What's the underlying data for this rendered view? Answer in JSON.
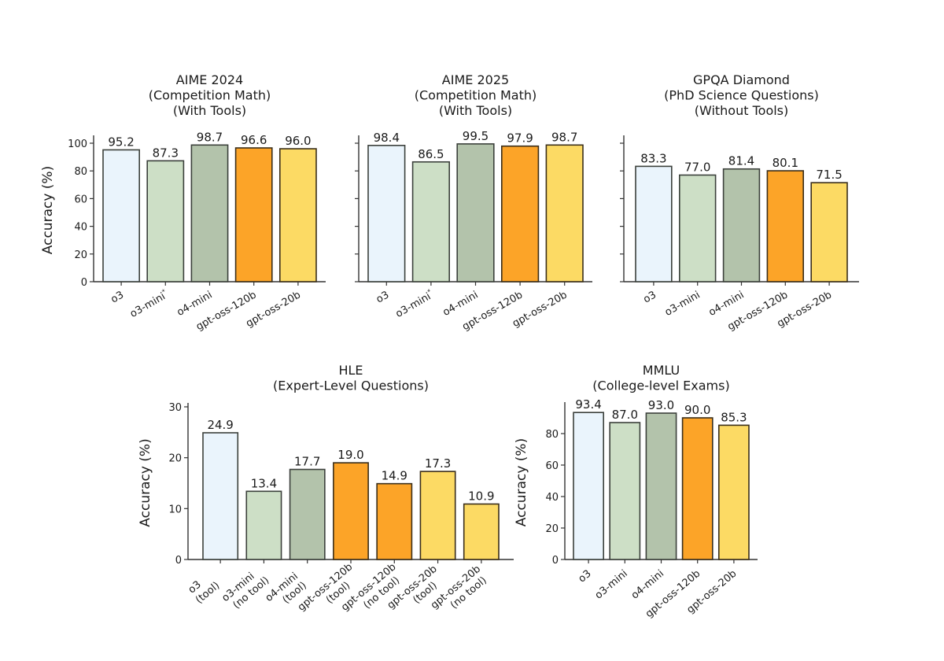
{
  "palette": {
    "o3": {
      "fill": "#EAF4FC",
      "edge": "#3b403b"
    },
    "o3-mini": {
      "fill": "#CDDFC6",
      "edge": "#3b403b"
    },
    "o4-mini": {
      "fill": "#B3C3AB",
      "edge": "#3b403b"
    },
    "gpt-oss-120b": {
      "fill": "#FCA428",
      "edge": "#3a2e1a"
    },
    "gpt-oss-20b": {
      "fill": "#FCDA64",
      "edge": "#3a2e1a"
    }
  },
  "chart_data": [
    {
      "id": "aime2024",
      "type": "bar",
      "title": [
        "AIME 2024",
        "(Competition Math)",
        "(With Tools)"
      ],
      "xlabel": "",
      "ylabel": "Accuracy (%)",
      "ylim": [
        0,
        105
      ],
      "yticks": [
        0,
        20,
        40,
        60,
        80,
        100
      ],
      "show_ytick_labels": true,
      "categories": [
        "o3",
        "o3-mini*",
        "o4-mini",
        "gpt-oss-120b",
        "gpt-oss-20b"
      ],
      "color_keys": [
        "o3",
        "o3-mini",
        "o4-mini",
        "gpt-oss-120b",
        "gpt-oss-20b"
      ],
      "values": [
        95.2,
        87.3,
        98.7,
        96.6,
        96.0
      ],
      "value_labels": [
        "95.2",
        "87.3",
        "98.7",
        "96.6",
        "96.0"
      ],
      "grid": false
    },
    {
      "id": "aime2025",
      "type": "bar",
      "title": [
        "AIME 2025",
        "(Competition Math)",
        "(With Tools)"
      ],
      "xlabel": "",
      "ylabel": "",
      "ylim": [
        0,
        105
      ],
      "yticks": [
        0,
        20,
        40,
        60,
        80,
        100
      ],
      "show_ytick_labels": false,
      "categories": [
        "o3",
        "o3-mini*",
        "o4-mini",
        "gpt-oss-120b",
        "gpt-oss-20b"
      ],
      "color_keys": [
        "o3",
        "o3-mini",
        "o4-mini",
        "gpt-oss-120b",
        "gpt-oss-20b"
      ],
      "values": [
        98.4,
        86.5,
        99.5,
        97.9,
        98.7
      ],
      "value_labels": [
        "98.4",
        "86.5",
        "99.5",
        "97.9",
        "98.7"
      ],
      "grid": false
    },
    {
      "id": "gpqa",
      "type": "bar",
      "title": [
        "GPQA Diamond",
        "(PhD Science Questions)",
        "(Without Tools)"
      ],
      "xlabel": "",
      "ylabel": "",
      "ylim": [
        0,
        105
      ],
      "yticks": [
        0,
        20,
        40,
        60,
        80,
        100
      ],
      "show_ytick_labels": false,
      "categories": [
        "o3",
        "o3-mini",
        "o4-mini",
        "gpt-oss-120b",
        "gpt-oss-20b"
      ],
      "color_keys": [
        "o3",
        "o3-mini",
        "o4-mini",
        "gpt-oss-120b",
        "gpt-oss-20b"
      ],
      "values": [
        83.3,
        77.0,
        81.4,
        80.1,
        71.5
      ],
      "value_labels": [
        "83.3",
        "77.0",
        "81.4",
        "80.1",
        "71.5"
      ],
      "grid": false
    },
    {
      "id": "hle",
      "type": "bar",
      "title": [
        "HLE",
        "(Expert-Level Questions)"
      ],
      "xlabel": "",
      "ylabel": "Accuracy (%)",
      "ylim": [
        0,
        30.8
      ],
      "yticks": [
        0,
        10,
        20,
        30
      ],
      "show_ytick_labels": true,
      "categories": [
        [
          "o3",
          "(tool)"
        ],
        [
          "o3-mini",
          "(no tool)"
        ],
        [
          "o4-mini",
          "(tool)"
        ],
        [
          "gpt-oss-120b",
          "(tool)"
        ],
        [
          "gpt-oss-120b",
          "(no tool)"
        ],
        [
          "gpt-oss-20b",
          "(tool)"
        ],
        [
          "gpt-oss-20b",
          "(no tool)"
        ]
      ],
      "color_keys": [
        "o3",
        "o3-mini",
        "o4-mini",
        "gpt-oss-120b",
        "gpt-oss-120b",
        "gpt-oss-20b",
        "gpt-oss-20b"
      ],
      "values": [
        24.9,
        13.4,
        17.7,
        19.0,
        14.9,
        17.3,
        10.9
      ],
      "value_labels": [
        "24.9",
        "13.4",
        "17.7",
        "19.0",
        "14.9",
        "17.3",
        "10.9"
      ],
      "grid": false
    },
    {
      "id": "mmlu",
      "type": "bar",
      "title": [
        "MMLU",
        "(College-level Exams)"
      ],
      "xlabel": "",
      "ylabel": "Accuracy (%)",
      "ylim": [
        0,
        100
      ],
      "yticks": [
        0,
        20,
        40,
        60,
        80
      ],
      "show_ytick_labels": true,
      "categories": [
        "o3",
        "o3-mini",
        "o4-mini",
        "gpt-oss-120b",
        "gpt-oss-20b"
      ],
      "color_keys": [
        "o3",
        "o3-mini",
        "o4-mini",
        "gpt-oss-120b",
        "gpt-oss-20b"
      ],
      "values": [
        93.4,
        87.0,
        93.0,
        90.0,
        85.3
      ],
      "value_labels": [
        "93.4",
        "87.0",
        "93.0",
        "90.0",
        "85.3"
      ],
      "grid": false
    }
  ]
}
